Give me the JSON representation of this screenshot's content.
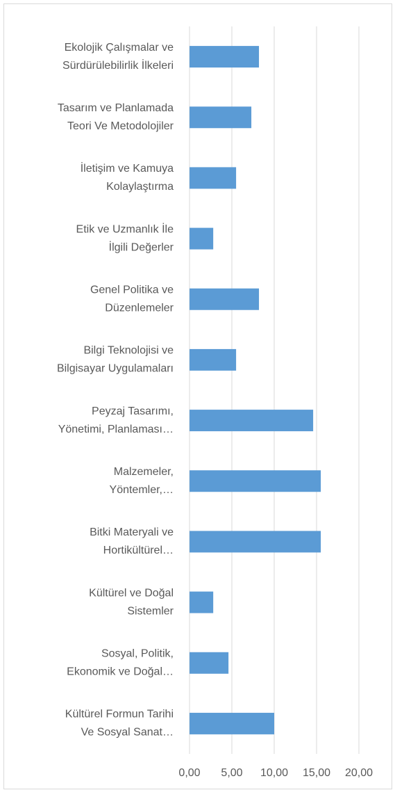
{
  "chart_data": {
    "type": "bar",
    "orientation": "horizontal",
    "categories": [
      [
        "Ekolojik Çalışmalar ve",
        "Sürdürülebilirlik İlkeleri"
      ],
      [
        "Tasarım ve Planlamada",
        "Teori Ve Metodolojiler"
      ],
      [
        "İletişim ve Kamuya",
        "Kolaylaştırma"
      ],
      [
        "Etik ve Uzmanlık İle",
        "İlgili Değerler"
      ],
      [
        "Genel Politika ve",
        "Düzenlemeler"
      ],
      [
        "Bilgi Teknolojisi ve",
        "Bilgisayar Uygulamaları"
      ],
      [
        "Peyzaj Tasarımı,",
        "Yönetimi, Planlaması…"
      ],
      [
        "Malzemeler,",
        "Yöntemler,…"
      ],
      [
        "Bitki Materyali ve",
        "Hortikültürel…"
      ],
      [
        "Kültürel ve Doğal",
        "Sistemler"
      ],
      [
        "Sosyal, Politik,",
        "Ekonomik ve Doğal…"
      ],
      [
        "Kültürel Formun Tarihi",
        "Ve Sosyal Sanat…"
      ]
    ],
    "values": [
      8.2,
      7.3,
      5.5,
      2.8,
      8.2,
      5.5,
      14.6,
      15.5,
      15.5,
      2.8,
      4.6,
      10.0
    ],
    "color": "#5b9bd5",
    "xlim": [
      0,
      20
    ],
    "xticks": [
      {
        "value": 0,
        "label": "0,00"
      },
      {
        "value": 5,
        "label": "5,00"
      },
      {
        "value": 10,
        "label": "10,00"
      },
      {
        "value": 15,
        "label": "15,00"
      },
      {
        "value": 20,
        "label": "20,00"
      }
    ],
    "grid": true
  }
}
